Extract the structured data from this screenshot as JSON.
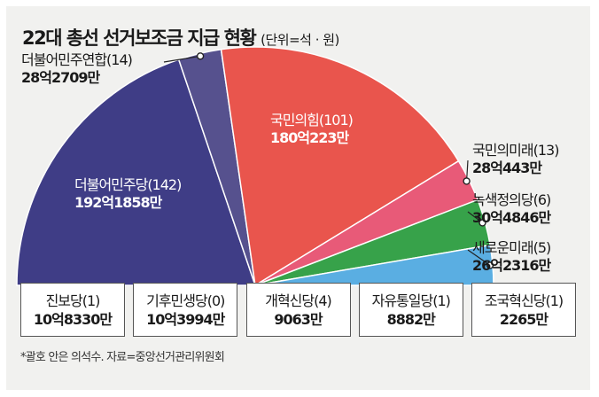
{
  "header": {
    "title": "22대 총선 선거보조금 지급 현황",
    "unit": "(단위=석 · 원)"
  },
  "chart_data": {
    "type": "pie",
    "title": "22대 총선 선거보조금 지급 현황",
    "unit": "(단위=석 · 원)",
    "slices": [
      {
        "party": "더불어민주당",
        "seats": 142,
        "name": "더불어민주당(142)",
        "amount_label": "192억1858만",
        "value": 1921858,
        "color": "#3f3d86",
        "label_style": "inside"
      },
      {
        "party": "더불어민주연합",
        "seats": 14,
        "name": "더불어민주연합(14)",
        "amount_label": "28억2709만",
        "value": 282709,
        "color": "#56518e",
        "label_style": "outside"
      },
      {
        "party": "국민의힘",
        "seats": 101,
        "name": "국민의힘(101)",
        "amount_label": "180억223만",
        "value": 1800223,
        "color": "#e9554d",
        "label_style": "inside"
      },
      {
        "party": "국민의미래",
        "seats": 13,
        "name": "국민의미래(13)",
        "amount_label": "28억443만",
        "value": 280443,
        "color": "#e85a78",
        "label_style": "outside"
      },
      {
        "party": "녹색정의당",
        "seats": 6,
        "name": "녹색정의당(6)",
        "amount_label": "30억4846만",
        "value": 304846,
        "color": "#37a24a",
        "label_style": "outside"
      },
      {
        "party": "새로운미래",
        "seats": 5,
        "name": "새로운미래(5)",
        "amount_label": "26억2316만",
        "value": 262316,
        "color": "#5aaee2",
        "label_style": "outside"
      }
    ],
    "boxes": [
      {
        "name": "진보당(1)",
        "amount_label": "10억8330만",
        "value": 108330
      },
      {
        "name": "기후민생당(0)",
        "amount_label": "10억3994만",
        "value": 103994
      },
      {
        "name": "개혁신당(4)",
        "amount_label": "9063만",
        "value": 9063
      },
      {
        "name": "자유통일당(1)",
        "amount_label": "8882만",
        "value": 8882
      },
      {
        "name": "조국혁신당(1)",
        "amount_label": "2265만",
        "value": 2265
      }
    ]
  },
  "footnote": "*괄호 안은 의석수. 자료=중앙선거관리위원회"
}
